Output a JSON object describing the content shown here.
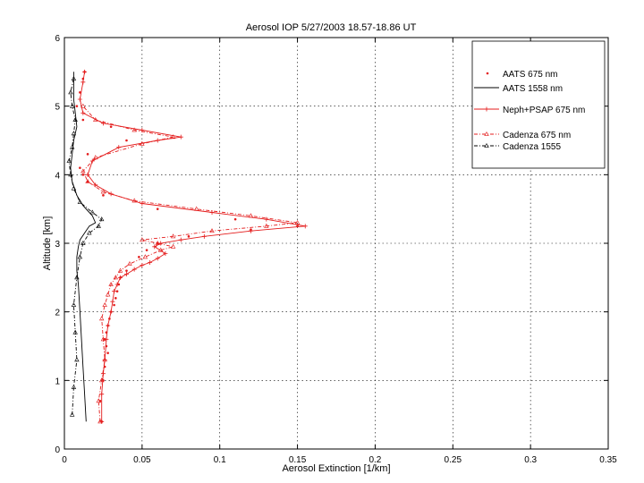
{
  "chart_data": {
    "type": "line",
    "title": "Aerosol IOP  5/27/2003 18.57-18.86  UT",
    "xlabel": "Aerosol Extinction [1/km]",
    "ylabel": "Altitude [km]",
    "xlim": [
      0,
      0.35
    ],
    "ylim": [
      0,
      6
    ],
    "xticks": [
      "0",
      "0.05",
      "0.1",
      "0.15",
      "0.2",
      "0.25",
      "0.3",
      "0.35"
    ],
    "yticks": [
      "0",
      "1",
      "2",
      "3",
      "4",
      "5",
      "6"
    ],
    "grid": true,
    "legend_position": "top-right",
    "colors": {
      "red": "#e41c1c",
      "black": "#000000"
    },
    "series": [
      {
        "name": "AATS 675 nm",
        "color": "#e41c1c",
        "style": "points",
        "x": [
          0.024,
          0.023,
          0.025,
          0.026,
          0.028,
          0.027,
          0.026,
          0.027,
          0.028,
          0.029,
          0.03,
          0.032,
          0.033,
          0.034,
          0.035,
          0.036,
          0.04,
          0.048,
          0.053,
          0.06,
          0.08,
          0.12,
          0.15,
          0.11,
          0.06,
          0.025,
          0.015,
          0.012,
          0.01,
          0.015,
          0.04,
          0.03,
          0.012,
          0.008,
          0.01,
          0.012,
          0.013
        ],
        "y": [
          0.4,
          0.7,
          1.0,
          1.2,
          1.4,
          1.5,
          1.6,
          1.7,
          1.8,
          1.9,
          2.0,
          2.1,
          2.2,
          2.3,
          2.4,
          2.5,
          2.6,
          2.8,
          2.9,
          3.0,
          3.1,
          3.2,
          3.25,
          3.35,
          3.5,
          3.7,
          3.9,
          4.0,
          4.1,
          4.3,
          4.5,
          4.7,
          4.8,
          5.0,
          5.2,
          5.4,
          5.5
        ]
      },
      {
        "name": "AATS 1558 nm",
        "color": "#000000",
        "style": "line",
        "x": [
          0.014,
          0.013,
          0.012,
          0.011,
          0.01,
          0.009,
          0.008,
          0.008,
          0.009,
          0.01,
          0.013,
          0.016,
          0.02,
          0.018,
          0.012,
          0.008,
          0.005,
          0.004,
          0.005,
          0.006,
          0.008,
          0.007,
          0.006,
          0.006,
          0.006
        ],
        "y": [
          0.4,
          0.8,
          1.2,
          1.6,
          2.0,
          2.4,
          2.6,
          2.8,
          2.95,
          3.05,
          3.15,
          3.25,
          3.3,
          3.4,
          3.55,
          3.7,
          3.9,
          4.1,
          4.3,
          4.5,
          4.7,
          4.9,
          5.1,
          5.3,
          5.5
        ]
      },
      {
        "name": "Neph+PSAP 675 nm",
        "color": "#e41c1c",
        "style": "line-plus",
        "x": [
          0.024,
          0.024,
          0.025,
          0.026,
          0.027,
          0.028,
          0.03,
          0.031,
          0.032,
          0.034,
          0.036,
          0.04,
          0.045,
          0.05,
          0.055,
          0.06,
          0.065,
          0.058,
          0.062,
          0.075,
          0.09,
          0.12,
          0.155,
          0.13,
          0.095,
          0.05,
          0.03,
          0.02,
          0.015,
          0.018,
          0.035,
          0.06,
          0.075,
          0.05,
          0.025,
          0.012,
          0.01,
          0.012,
          0.013
        ],
        "y": [
          0.4,
          0.8,
          1.1,
          1.3,
          1.6,
          1.8,
          2.0,
          2.15,
          2.3,
          2.4,
          2.5,
          2.55,
          2.62,
          2.68,
          2.72,
          2.78,
          2.85,
          2.95,
          3.0,
          3.05,
          3.1,
          3.18,
          3.25,
          3.35,
          3.45,
          3.58,
          3.72,
          3.85,
          4.0,
          4.2,
          4.4,
          4.5,
          4.55,
          4.65,
          4.75,
          4.9,
          5.1,
          5.35,
          5.5
        ]
      },
      {
        "name": "Cadenza 675 nm",
        "color": "#e41c1c",
        "style": "dashdot-triangle",
        "x": [
          0.023,
          0.022,
          0.024,
          0.026,
          0.025,
          0.024,
          0.026,
          0.028,
          0.03,
          0.033,
          0.036,
          0.042,
          0.052,
          0.062,
          0.07,
          0.06,
          0.05,
          0.07,
          0.095,
          0.13,
          0.15,
          0.12,
          0.085,
          0.045,
          0.025,
          0.015,
          0.012,
          0.02,
          0.05,
          0.07,
          0.045,
          0.02,
          0.012
        ],
        "y": [
          0.4,
          0.7,
          1.0,
          1.3,
          1.6,
          1.9,
          2.1,
          2.25,
          2.4,
          2.5,
          2.6,
          2.7,
          2.8,
          2.9,
          2.95,
          3.0,
          3.05,
          3.1,
          3.18,
          3.25,
          3.3,
          3.4,
          3.5,
          3.62,
          3.75,
          3.9,
          4.05,
          4.25,
          4.45,
          4.55,
          4.65,
          4.8,
          5.0
        ]
      },
      {
        "name": "Cadenza 1555",
        "color": "#000000",
        "style": "dashdot-triangle",
        "x": [
          0.005,
          0.006,
          0.008,
          0.007,
          0.006,
          0.008,
          0.01,
          0.012,
          0.016,
          0.022,
          0.024,
          0.018,
          0.01,
          0.006,
          0.004,
          0.003,
          0.005,
          0.006,
          0.007,
          0.005,
          0.004,
          0.006
        ],
        "y": [
          0.5,
          0.9,
          1.3,
          1.7,
          2.1,
          2.5,
          2.8,
          3.0,
          3.15,
          3.25,
          3.35,
          3.45,
          3.6,
          3.8,
          4.0,
          4.2,
          4.4,
          4.6,
          4.8,
          5.0,
          5.2,
          5.4
        ]
      }
    ]
  }
}
